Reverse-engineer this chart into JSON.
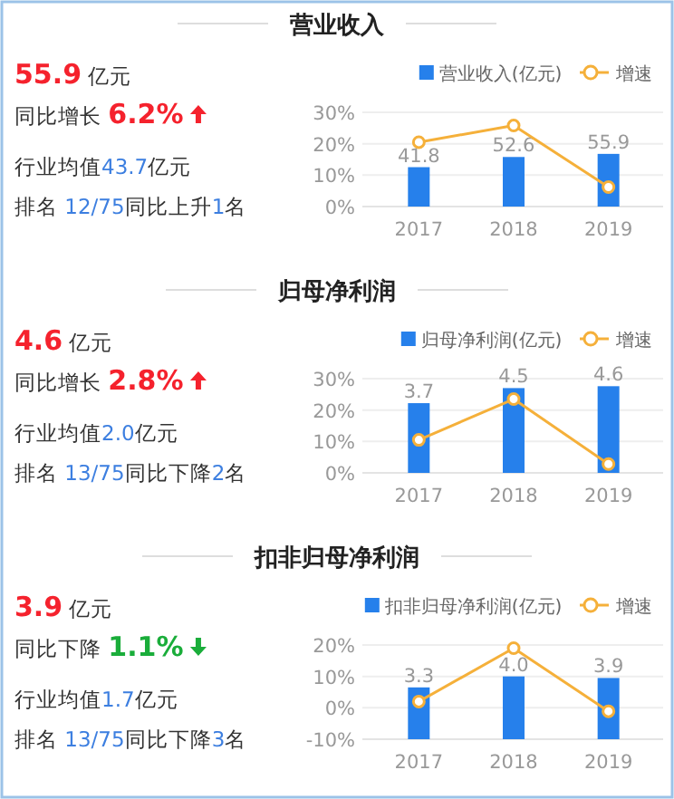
{
  "chart_data": [
    {
      "type": "bar",
      "title": "营业收入",
      "annotations": [
        "55.9 亿元",
        "同比增长 6.2%",
        "行业均值43.7亿元",
        "排名 12/75同比上升1名"
      ],
      "categories": [
        "2017",
        "2018",
        "2019"
      ],
      "legend": "top right",
      "grid": "y",
      "marker": "circle",
      "ylim": [
        0,
        30
      ],
      "yticks": [
        {
          "value": 0,
          "label": "0%"
        },
        {
          "value": 10,
          "label": "10%"
        },
        {
          "value": 20,
          "label": "20%"
        },
        {
          "value": 30,
          "label": "30%"
        }
      ],
      "y2lim": [
        0,
        100
      ],
      "series": [
        {
          "name": "营业收入(亿元)",
          "axis": "y2",
          "color": "#2680eb",
          "values": [
            41.8,
            52.6,
            55.9
          ],
          "value_labels": [
            "41.8",
            "52.6",
            "55.9"
          ]
        },
        {
          "name": "增速",
          "type": "line",
          "color": "#f5b03a",
          "values": [
            20.5,
            25.8,
            6.2
          ]
        }
      ]
    },
    {
      "type": "bar",
      "title": "归母净利润",
      "annotations": [
        "4.6 亿元",
        "同比增长 2.8%",
        "行业均值2.0亿元",
        "排名 13/75同比下降2名"
      ],
      "categories": [
        "2017",
        "2018",
        "2019"
      ],
      "legend": "top right",
      "grid": "y",
      "marker": "circle",
      "ylim": [
        0,
        30
      ],
      "yticks": [
        {
          "value": 0,
          "label": "0%"
        },
        {
          "value": 10,
          "label": "10%"
        },
        {
          "value": 20,
          "label": "20%"
        },
        {
          "value": 30,
          "label": "30%"
        }
      ],
      "y2lim": [
        0,
        5
      ],
      "series": [
        {
          "name": "归母净利润(亿元)",
          "axis": "y2",
          "color": "#2680eb",
          "values": [
            3.7,
            4.5,
            4.6
          ],
          "value_labels": [
            "3.7",
            "4.5",
            "4.6"
          ]
        },
        {
          "name": "增速",
          "type": "line",
          "color": "#f5b03a",
          "values": [
            10.5,
            23.5,
            2.8
          ]
        }
      ]
    },
    {
      "type": "bar",
      "title": "扣非归母净利润",
      "annotations": [
        "3.9 亿元",
        "同比下降 1.1%",
        "行业均值1.7亿元",
        "排名 13/75同比下降3名"
      ],
      "categories": [
        "2017",
        "2018",
        "2019"
      ],
      "legend": "top right",
      "grid": "y",
      "marker": "circle",
      "ylim": [
        -10,
        20
      ],
      "yticks": [
        {
          "value": -10,
          "label": "-10%"
        },
        {
          "value": 0,
          "label": "0%"
        },
        {
          "value": 10,
          "label": "10%"
        },
        {
          "value": 20,
          "label": "20%"
        }
      ],
      "y2lim": [
        0,
        6
      ],
      "series": [
        {
          "name": "扣非归母净利润(亿元)",
          "axis": "y2",
          "color": "#2680eb",
          "values": [
            3.3,
            4.0,
            3.9
          ],
          "value_labels": [
            "3.3",
            "4.0",
            "3.9"
          ]
        },
        {
          "name": "增速",
          "type": "line",
          "color": "#f5b03a",
          "values": [
            2,
            19,
            -1.1
          ]
        }
      ]
    }
  ]
}
